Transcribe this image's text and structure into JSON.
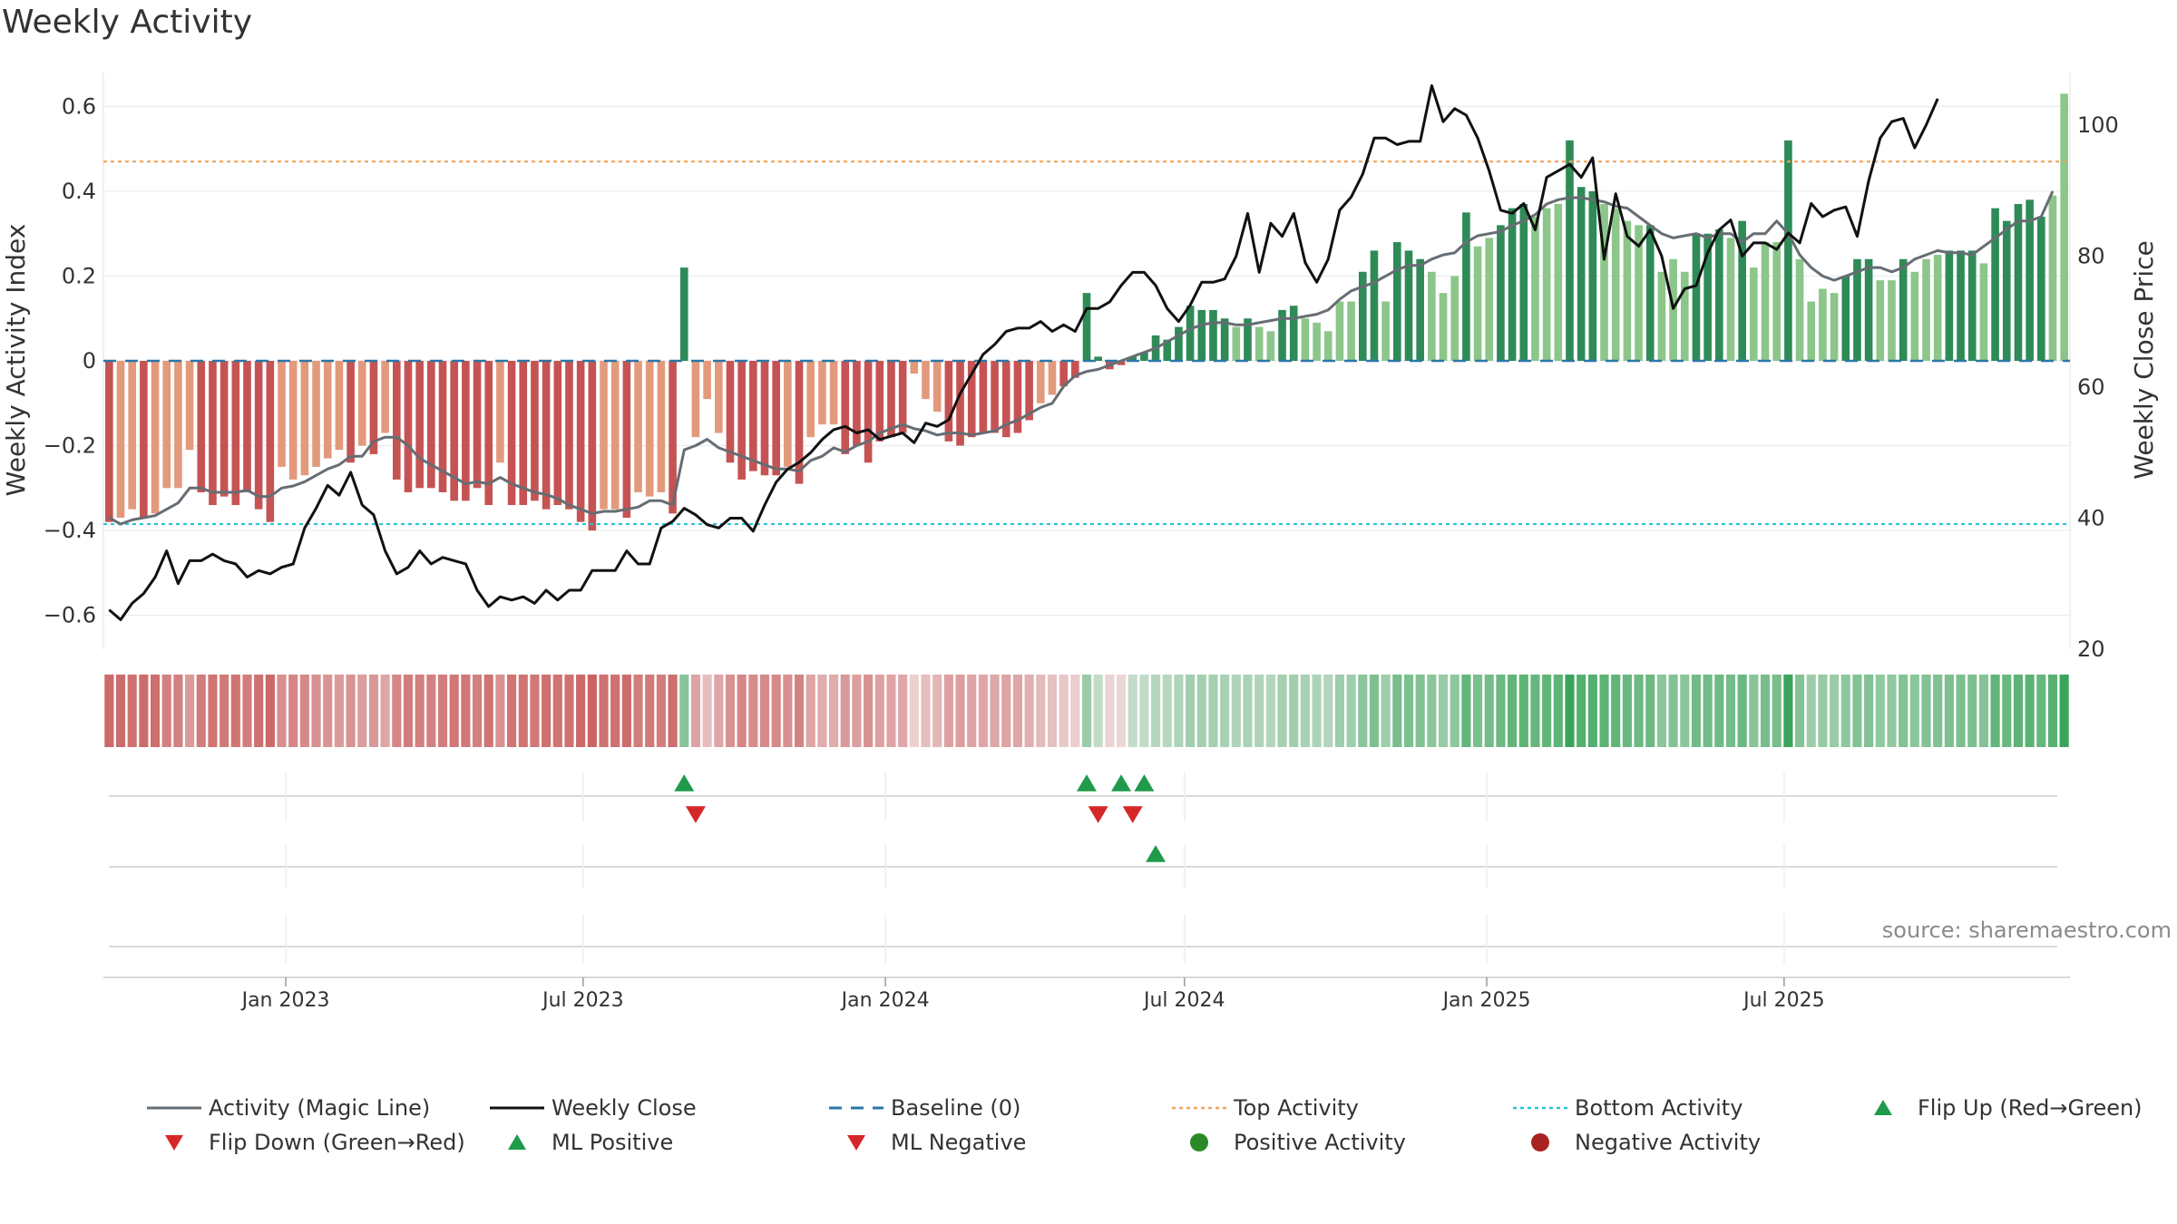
{
  "title": "Weekly Activity",
  "source": "source: sharemaestro.com",
  "colors": {
    "strong_red": "#c65353",
    "light_red": "#e39a7c",
    "strong_green": "#2e8b57",
    "light_green": "#8cc68a",
    "magic": "#666d73",
    "close": "#111111",
    "baseline": "#2a77a7",
    "top": "#f1a35c",
    "bottom": "#2ac3d6",
    "tri_up": "#1f9a4a",
    "tri_down": "#d62728"
  },
  "chart_data": {
    "type": "bar",
    "title": "Weekly Activity",
    "ylabel": "Weekly Activity Index",
    "y2label": "Weekly Close Price",
    "ylim": [
      -0.68,
      0.68
    ],
    "y2lim": [
      20,
      108
    ],
    "yticks": [
      "0.6",
      "0.4",
      "0.2",
      "0",
      "−0.2",
      "−0.4",
      "−0.6"
    ],
    "yticks_values": [
      0.6,
      0.4,
      0.2,
      0,
      -0.2,
      -0.4,
      -0.6
    ],
    "y2ticks": [
      "100",
      "80",
      "60",
      "40",
      "20"
    ],
    "y2ticks_values": [
      100,
      80,
      60,
      40,
      20
    ],
    "xticks": [
      "Jan 2023",
      "Jul 2023",
      "Jan 2024",
      "Jul 2024",
      "Jan 2025",
      "Jul 2025"
    ],
    "top_activity": 0.47,
    "bottom_activity": -0.385,
    "start_week": "2022-09-12",
    "activity": [
      -0.38,
      -0.37,
      -0.35,
      -0.37,
      -0.36,
      -0.3,
      -0.3,
      -0.21,
      -0.31,
      -0.34,
      -0.32,
      -0.34,
      -0.31,
      -0.35,
      -0.38,
      -0.25,
      -0.28,
      -0.27,
      -0.25,
      -0.23,
      -0.21,
      -0.24,
      -0.2,
      -0.22,
      -0.17,
      -0.28,
      -0.31,
      -0.3,
      -0.3,
      -0.31,
      -0.33,
      -0.33,
      -0.3,
      -0.34,
      -0.24,
      -0.34,
      -0.34,
      -0.33,
      -0.35,
      -0.34,
      -0.35,
      -0.38,
      -0.4,
      -0.35,
      -0.35,
      -0.37,
      -0.31,
      -0.32,
      -0.31,
      -0.36,
      0.22,
      -0.18,
      -0.09,
      -0.17,
      -0.24,
      -0.28,
      -0.26,
      -0.27,
      -0.27,
      -0.25,
      -0.29,
      -0.18,
      -0.15,
      -0.15,
      -0.22,
      -0.2,
      -0.24,
      -0.19,
      -0.18,
      -0.17,
      -0.03,
      -0.09,
      -0.12,
      -0.19,
      -0.2,
      -0.18,
      -0.17,
      -0.17,
      -0.18,
      -0.17,
      -0.14,
      -0.1,
      -0.08,
      -0.06,
      -0.04,
      0.16,
      0.01,
      -0.02,
      -0.01,
      0.01,
      0.02,
      0.06,
      0.05,
      0.08,
      0.13,
      0.12,
      0.12,
      0.1,
      0.08,
      0.1,
      0.08,
      0.07,
      0.12,
      0.13,
      0.1,
      0.09,
      0.07,
      0.14,
      0.14,
      0.21,
      0.26,
      0.14,
      0.28,
      0.26,
      0.24,
      0.21,
      0.16,
      0.2,
      0.35,
      0.27,
      0.29,
      0.32,
      0.36,
      0.37,
      0.34,
      0.36,
      0.37,
      0.52,
      0.41,
      0.4,
      0.37,
      0.36,
      0.33,
      0.32,
      0.32,
      0.21,
      0.24,
      0.21,
      0.3,
      0.3,
      0.31,
      0.29,
      0.33,
      0.22,
      0.28,
      0.28,
      0.52,
      0.24,
      0.14,
      0.17,
      0.16,
      0.2,
      0.24,
      0.24,
      0.19,
      0.19,
      0.24,
      0.21,
      0.24,
      0.25,
      0.26,
      0.26,
      0.26,
      0.23,
      0.36,
      0.33,
      0.37,
      0.38,
      0.34,
      0.39,
      0.63
    ],
    "magic_line": [
      -0.37,
      -0.385,
      -0.375,
      -0.37,
      -0.365,
      -0.35,
      -0.335,
      -0.3,
      -0.3,
      -0.31,
      -0.31,
      -0.31,
      -0.305,
      -0.32,
      -0.32,
      -0.3,
      -0.295,
      -0.285,
      -0.27,
      -0.255,
      -0.245,
      -0.225,
      -0.225,
      -0.19,
      -0.18,
      -0.18,
      -0.2,
      -0.23,
      -0.245,
      -0.26,
      -0.275,
      -0.29,
      -0.285,
      -0.29,
      -0.275,
      -0.29,
      -0.3,
      -0.31,
      -0.315,
      -0.325,
      -0.34,
      -0.35,
      -0.36,
      -0.355,
      -0.355,
      -0.35,
      -0.345,
      -0.33,
      -0.33,
      -0.34,
      -0.21,
      -0.2,
      -0.185,
      -0.205,
      -0.215,
      -0.225,
      -0.235,
      -0.245,
      -0.255,
      -0.255,
      -0.26,
      -0.235,
      -0.225,
      -0.205,
      -0.215,
      -0.2,
      -0.19,
      -0.17,
      -0.16,
      -0.15,
      -0.16,
      -0.165,
      -0.175,
      -0.17,
      -0.17,
      -0.175,
      -0.17,
      -0.165,
      -0.15,
      -0.14,
      -0.125,
      -0.11,
      -0.1,
      -0.06,
      -0.035,
      -0.025,
      -0.02,
      -0.01,
      0,
      0.01,
      0.02,
      0.03,
      0.045,
      0.06,
      0.075,
      0.085,
      0.09,
      0.09,
      0.085,
      0.085,
      0.09,
      0.095,
      0.1,
      0.1,
      0.105,
      0.11,
      0.12,
      0.145,
      0.165,
      0.175,
      0.185,
      0.2,
      0.215,
      0.225,
      0.225,
      0.24,
      0.25,
      0.255,
      0.28,
      0.295,
      0.3,
      0.305,
      0.32,
      0.33,
      0.345,
      0.37,
      0.38,
      0.385,
      0.385,
      0.38,
      0.375,
      0.365,
      0.36,
      0.34,
      0.32,
      0.3,
      0.29,
      0.295,
      0.3,
      0.29,
      0.3,
      0.3,
      0.28,
      0.3,
      0.3,
      0.33,
      0.3,
      0.25,
      0.22,
      0.2,
      0.19,
      0.2,
      0.21,
      0.22,
      0.22,
      0.21,
      0.22,
      0.24,
      0.25,
      0.26,
      0.255,
      0.255,
      0.25,
      0.27,
      0.29,
      0.31,
      0.33,
      0.33,
      0.34,
      0.4
    ],
    "weekly_close": [
      26,
      24.5,
      27,
      28.5,
      31,
      35,
      30,
      33.5,
      33.5,
      34.5,
      33.5,
      33,
      31,
      32,
      31.5,
      32.5,
      33,
      38.5,
      41.5,
      45,
      43.5,
      47,
      42,
      40.5,
      35,
      31.5,
      32.5,
      35,
      33,
      34,
      33.5,
      33,
      29,
      26.5,
      28,
      27.5,
      28,
      27,
      29,
      27.5,
      29,
      29,
      32,
      32,
      32,
      35,
      33,
      33,
      38.5,
      39.5,
      41.5,
      40.5,
      39,
      38.5,
      40,
      40,
      38,
      42,
      45.5,
      47.5,
      48.5,
      50,
      52,
      53.5,
      54,
      53,
      53.5,
      52,
      52.5,
      53,
      51.5,
      54.5,
      54,
      55,
      59,
      62,
      65,
      66.5,
      68.5,
      69,
      69,
      70,
      68.5,
      69.5,
      68.5,
      72,
      72,
      73,
      75.5,
      77.5,
      77.5,
      75.5,
      72,
      70,
      72.5,
      76,
      76,
      76.5,
      80,
      86.5,
      77.5,
      85,
      83,
      86.5,
      79,
      76,
      79.5,
      87,
      89,
      92.5,
      98,
      98,
      97,
      97.5,
      97.5,
      106,
      100.5,
      102.5,
      101.5,
      98,
      93,
      87,
      86.5,
      88,
      84,
      92,
      93,
      94,
      92,
      95,
      79.5,
      89.5,
      83,
      81.5,
      84,
      80,
      72,
      75,
      75.5,
      80.5,
      84,
      85.5,
      80,
      82,
      82,
      81,
      83.5,
      82,
      88,
      86,
      87,
      87.5,
      83,
      91.5,
      98,
      100.5,
      101,
      96.5,
      100,
      104
    ],
    "flips": [
      {
        "week": 50,
        "row": 1,
        "dir": "up"
      },
      {
        "week": 51,
        "row": 1,
        "dir": "down"
      },
      {
        "week": 85,
        "row": 1,
        "dir": "up"
      },
      {
        "week": 86,
        "row": 1,
        "dir": "down"
      },
      {
        "week": 88,
        "row": 1,
        "dir": "up"
      },
      {
        "week": 89,
        "row": 1,
        "dir": "down"
      },
      {
        "week": 90,
        "row": 1,
        "dir": "up"
      },
      {
        "week": 91,
        "row": 2,
        "dir": "up"
      }
    ],
    "legend": [
      {
        "label": "Activity (Magic Line)",
        "symbol": "line",
        "color": "#666d73"
      },
      {
        "label": "Weekly Close",
        "symbol": "line",
        "color": "#111111"
      },
      {
        "label": "Baseline (0)",
        "symbol": "dash",
        "color": "#2a77a7"
      },
      {
        "label": "Top Activity",
        "symbol": "dot-line",
        "color": "#f1a35c"
      },
      {
        "label": "Bottom Activity",
        "symbol": "dot-line",
        "color": "#2ac3d6"
      },
      {
        "label": "Flip Up (Red→Green)",
        "symbol": "tri-up",
        "color": "#1f9a4a"
      },
      {
        "label": "Flip Down (Green→Red)",
        "symbol": "tri-down",
        "color": "#d62728"
      },
      {
        "label": "ML Positive",
        "symbol": "tri-up",
        "color": "#1f9a4a"
      },
      {
        "label": "ML Negative",
        "symbol": "tri-down",
        "color": "#d62728"
      },
      {
        "label": "Positive Activity",
        "symbol": "circle",
        "color": "#2a8a2a"
      },
      {
        "label": "Negative Activity",
        "symbol": "circle",
        "color": "#a82222"
      }
    ]
  }
}
